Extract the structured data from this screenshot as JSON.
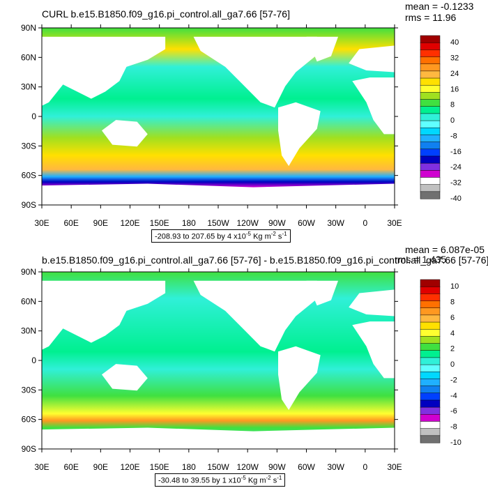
{
  "chart_data": [
    {
      "type": "heatmap",
      "title": "CURL b.e15.B1850.f09_g16.pi_control.all_ga7.66 [57-76]",
      "stats": {
        "mean_label": "mean = -0.1233",
        "rms_label": "rms = 11.96"
      },
      "range_label": {
        "prefix": "-208.93 to 207.65 by 4 x10",
        "exp": "-5",
        "units_a": " Kg m",
        "exp2": "-2",
        "units_b": " s",
        "exp3": "-1"
      },
      "y_ticks": [
        "90N",
        "60N",
        "30N",
        "0",
        "30S",
        "60S",
        "90S"
      ],
      "x_ticks": [
        "30E",
        "60E",
        "90E",
        "120E",
        "150E",
        "180",
        "150W",
        "120W",
        "90W",
        "60W",
        "30W",
        "0",
        "30E"
      ],
      "colorbar": {
        "labels": [
          "40",
          "32",
          "24",
          "16",
          "8",
          "0",
          "-8",
          "-16",
          "-24",
          "-32",
          "-40"
        ],
        "colors": [
          "#a00000",
          "#e00000",
          "#ff3000",
          "#ff7000",
          "#ff9820",
          "#ffb840",
          "#ffe000",
          "#ffff30",
          "#a0e020",
          "#40e040",
          "#00f090",
          "#30f0d8",
          "#60ffff",
          "#00d8ff",
          "#20b0ff",
          "#1080f0",
          "#0040ff",
          "#0000c0",
          "#8030e0",
          "#d000d0",
          "#ffffff",
          "#c0c0c0",
          "#707070"
        ]
      }
    },
    {
      "type": "heatmap",
      "title": "b.e15.B1850.f09_g16.pi_control.all_ga7.66 [57-76] - b.e15.B1850.f09_g16.pi_control.all_ga7.66 [57-76]",
      "stats": {
        "mean_label": "mean = 6.087e-05",
        "rms_label": "rms = 1.435"
      },
      "range_label": {
        "prefix": "-30.48 to 39.55 by 1 x10",
        "exp": "-5",
        "units_a": " Kg m",
        "exp2": "-2",
        "units_b": " s",
        "exp3": "-1"
      },
      "y_ticks": [
        "90N",
        "60N",
        "30N",
        "0",
        "30S",
        "60S",
        "90S"
      ],
      "x_ticks": [
        "30E",
        "60E",
        "90E",
        "120E",
        "150E",
        "180",
        "150W",
        "120W",
        "90W",
        "60W",
        "30W",
        "0",
        "30E"
      ],
      "colorbar": {
        "labels": [
          "10",
          "8",
          "6",
          "4",
          "2",
          "0",
          "-2",
          "-4",
          "-6",
          "-8",
          "-10"
        ],
        "colors": [
          "#a00000",
          "#e00000",
          "#ff3000",
          "#ff7000",
          "#ff9820",
          "#ffb840",
          "#ffe000",
          "#ffff30",
          "#a0e020",
          "#40e040",
          "#00f090",
          "#30f0d8",
          "#60ffff",
          "#00d8ff",
          "#20b0ff",
          "#1080f0",
          "#0040ff",
          "#0000c0",
          "#8030e0",
          "#d000d0",
          "#ffffff",
          "#c0c0c0",
          "#707070"
        ]
      }
    }
  ]
}
